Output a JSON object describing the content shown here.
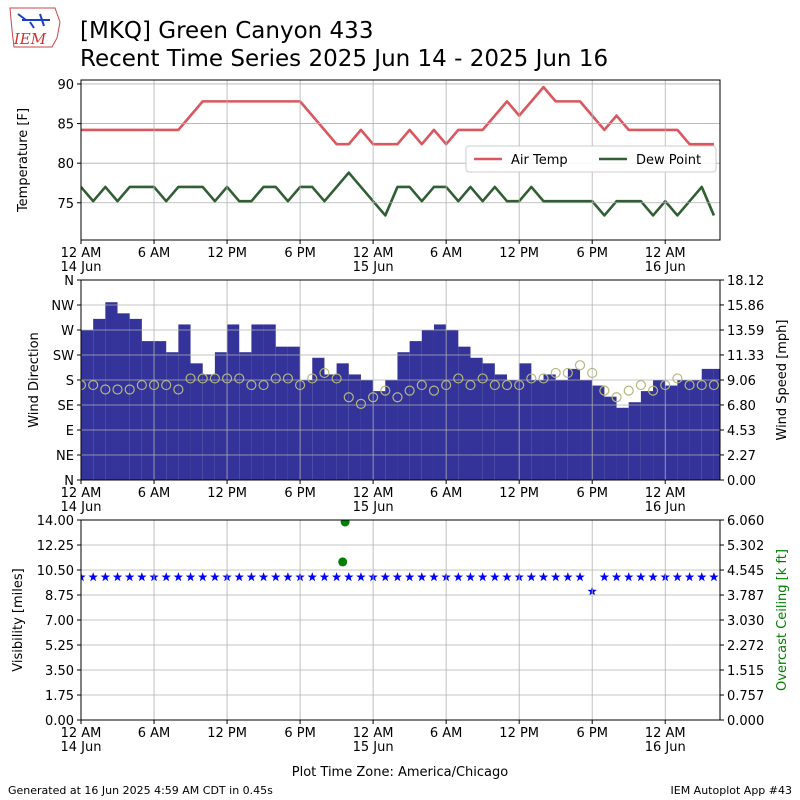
{
  "logo_text": "IEM",
  "title": "[MKQ] Green Canyon 433",
  "subtitle": "Recent Time Series 2025 Jun 14 - 2025 Jun 16",
  "xlabel": "Plot Time Zone: America/Chicago",
  "footer_left": "Generated at 16 Jun 2025 4:59 AM CDT in 0.45s",
  "footer_right": "IEM Autoplot App #43",
  "chart_data": [
    {
      "type": "line",
      "ylabel": "Temperature [F]",
      "grid": true,
      "legend": "center right",
      "legend_columns": 2,
      "xlim": [
        0,
        52.5
      ],
      "xticks": [
        {
          "value": 0,
          "label": "12 AM\n14 Jun"
        },
        {
          "value": 6,
          "label": "6 AM"
        },
        {
          "value": 12,
          "label": "12 PM"
        },
        {
          "value": 18,
          "label": "6 PM"
        },
        {
          "value": 24,
          "label": "12 AM\n15 Jun"
        },
        {
          "value": 30,
          "label": "6 AM"
        },
        {
          "value": 36,
          "label": "12 PM"
        },
        {
          "value": 42,
          "label": "6 PM"
        },
        {
          "value": 48,
          "label": "12 AM\n16 Jun"
        }
      ],
      "ylim": [
        70.3,
        90.5
      ],
      "yticks": [
        75,
        80,
        85,
        90
      ],
      "x": [
        0,
        1,
        2,
        3,
        4,
        5,
        6,
        7,
        8,
        9,
        10,
        11,
        12,
        13,
        14,
        15,
        16,
        17,
        18,
        19,
        20,
        21,
        22,
        23,
        24,
        25,
        26,
        27,
        28,
        29,
        30,
        31,
        32,
        33,
        34,
        35,
        36,
        37,
        38,
        39,
        40,
        41,
        42,
        43,
        44,
        45,
        46,
        47,
        48,
        49,
        50,
        51,
        52
      ],
      "series": [
        {
          "name": "Air Temp",
          "type": "line",
          "color": "#d9575e",
          "values": [
            84.2,
            84.2,
            84.2,
            84.2,
            84.2,
            84.2,
            84.2,
            84.2,
            84.2,
            86,
            87.8,
            87.8,
            87.8,
            87.8,
            87.8,
            87.8,
            87.8,
            87.8,
            87.8,
            86,
            84.2,
            82.4,
            82.4,
            84.2,
            82.4,
            82.4,
            82.4,
            84.2,
            82.4,
            84.2,
            82.4,
            84.2,
            84.2,
            84.2,
            86,
            87.8,
            86,
            87.8,
            89.6,
            87.8,
            87.8,
            87.8,
            86,
            84.2,
            86,
            84.2,
            84.2,
            84.2,
            84.2,
            84.2,
            82.4,
            82.4,
            82.4
          ]
        },
        {
          "name": "Dew Point",
          "type": "line",
          "color": "#2f5f33",
          "values": [
            77,
            75.2,
            77,
            75.2,
            77,
            77,
            77,
            75.2,
            77,
            77,
            77,
            75.2,
            77,
            75.2,
            75.2,
            77,
            77,
            75.2,
            77,
            77,
            75.2,
            77,
            78.8,
            77,
            75.2,
            73.4,
            77,
            77,
            75.2,
            77,
            77,
            75.2,
            77,
            75.2,
            77,
            75.2,
            75.2,
            77,
            75.2,
            75.2,
            75.2,
            75.2,
            75.2,
            73.4,
            75.2,
            75.2,
            75.2,
            73.4,
            75.2,
            73.4,
            75.2,
            77,
            73.4
          ]
        }
      ]
    },
    {
      "type": "bar",
      "ylabel": "Wind Direction",
      "y2label": "Wind Speed [mph]",
      "grid": true,
      "xlim": [
        0,
        52.5
      ],
      "xticks": [
        {
          "value": 0,
          "label": "12 AM\n14 Jun"
        },
        {
          "value": 6,
          "label": "6 AM"
        },
        {
          "value": 12,
          "label": "12 PM"
        },
        {
          "value": 18,
          "label": "6 PM"
        },
        {
          "value": 24,
          "label": "12 AM\n15 Jun"
        },
        {
          "value": 30,
          "label": "6 AM"
        },
        {
          "value": 36,
          "label": "12 PM"
        },
        {
          "value": 42,
          "label": "6 PM"
        },
        {
          "value": 48,
          "label": "12 AM\n16 Jun"
        }
      ],
      "ylim": [
        0,
        360
      ],
      "yticks": [
        {
          "value": 0,
          "label": "N"
        },
        {
          "value": 45,
          "label": "NE"
        },
        {
          "value": 90,
          "label": "E"
        },
        {
          "value": 135,
          "label": "SE"
        },
        {
          "value": 180,
          "label": "S"
        },
        {
          "value": 225,
          "label": "SW"
        },
        {
          "value": 270,
          "label": "W"
        },
        {
          "value": 315,
          "label": "NW"
        },
        {
          "value": 360,
          "label": "N"
        }
      ],
      "y2lim": [
        0,
        18.12
      ],
      "y2ticks": [
        {
          "value": 0,
          "label": "0.00"
        },
        2.27,
        4.53,
        {
          "value": 6.8,
          "label": "6.80"
        },
        9.06,
        11.33,
        13.59,
        15.86,
        18.12
      ],
      "x": [
        0,
        1,
        2,
        3,
        4,
        5,
        6,
        7,
        8,
        9,
        10,
        11,
        12,
        13,
        14,
        15,
        16,
        17,
        18,
        19,
        20,
        21,
        22,
        23,
        24,
        25,
        26,
        27,
        28,
        29,
        30,
        31,
        32,
        33,
        34,
        35,
        36,
        37,
        38,
        39,
        40,
        41,
        42,
        43,
        44,
        45,
        46,
        47,
        48,
        49,
        50,
        51,
        52
      ],
      "series": [
        {
          "type": "bar",
          "color": "#333399",
          "values": [
            270,
            290,
            320,
            300,
            290,
            250,
            250,
            230,
            280,
            210,
            190,
            230,
            280,
            230,
            280,
            280,
            240,
            240,
            180,
            220,
            190,
            210,
            190,
            180,
            160,
            180,
            230,
            250,
            270,
            280,
            270,
            240,
            220,
            210,
            190,
            180,
            210,
            180,
            190,
            180,
            200,
            180,
            170,
            150,
            130,
            140,
            160,
            180,
            170,
            180,
            180,
            200,
            200
          ]
        },
        {
          "type": "circle",
          "axis": "y2",
          "color": "#b4b77d",
          "values": [
            8.6,
            8.6,
            8.2,
            8.2,
            8.2,
            8.6,
            8.6,
            8.6,
            8.2,
            9.2,
            9.2,
            9.2,
            9.2,
            9.2,
            8.6,
            8.6,
            9.2,
            9.2,
            8.6,
            9.2,
            9.7,
            9.2,
            7.5,
            6.9,
            7.5,
            8.1,
            7.5,
            8.1,
            8.6,
            8.1,
            8.6,
            9.2,
            8.6,
            9.2,
            8.6,
            8.6,
            8.6,
            9.2,
            9.2,
            9.7,
            9.7,
            10.4,
            9.7,
            8.1,
            7.5,
            8.1,
            8.6,
            8.1,
            8.6,
            9.2,
            8.6,
            8.6,
            8.6
          ]
        }
      ]
    },
    {
      "type": "scatter",
      "ylabel": "Visibility [miles]",
      "y2label": "Overcast Ceiling [k ft]",
      "y2label_color": "green",
      "grid": true,
      "xlim": [
        0,
        52.5
      ],
      "xticks": [
        {
          "value": 0,
          "label": "12 AM\n14 Jun"
        },
        {
          "value": 6,
          "label": "6 AM"
        },
        {
          "value": 12,
          "label": "12 PM"
        },
        {
          "value": 18,
          "label": "6 PM"
        },
        {
          "value": 24,
          "label": "12 AM\n15 Jun"
        },
        {
          "value": 30,
          "label": "6 AM"
        },
        {
          "value": 36,
          "label": "12 PM"
        },
        {
          "value": 42,
          "label": "6 PM"
        },
        {
          "value": 48,
          "label": "12 AM\n16 Jun"
        }
      ],
      "ylim": [
        0,
        14
      ],
      "yticks": [
        {
          "value": 0,
          "label": "0.00"
        },
        1.75,
        {
          "value": 3.5,
          "label": "3.50"
        },
        5.25,
        {
          "value": 7,
          "label": "7.00"
        },
        8.75,
        {
          "value": 10.5,
          "label": "10.50"
        },
        12.25,
        {
          "value": 14,
          "label": "14.00"
        }
      ],
      "y2lim": [
        0,
        6.06
      ],
      "y2ticks": [
        {
          "value": 0,
          "label": "0.000"
        },
        0.757,
        1.515,
        2.272,
        {
          "value": 3.03,
          "label": "3.030"
        },
        3.787,
        4.545,
        5.302,
        {
          "value": 6.06,
          "label": "6.060"
        }
      ],
      "x": [
        0,
        1,
        2,
        3,
        4,
        5,
        6,
        7,
        8,
        9,
        10,
        11,
        12,
        13,
        14,
        15,
        16,
        17,
        18,
        19,
        20,
        21,
        22,
        23,
        24,
        25,
        26,
        27,
        28,
        29,
        30,
        31,
        32,
        33,
        34,
        35,
        36,
        37,
        38,
        39,
        40,
        41,
        42,
        43,
        44,
        45,
        46,
        47,
        48,
        49,
        50,
        51,
        52
      ],
      "series": [
        {
          "type": "star",
          "color": "blue",
          "values": [
            10,
            10,
            10,
            10,
            10,
            10,
            10,
            10,
            10,
            10,
            10,
            10,
            10,
            10,
            10,
            10,
            10,
            10,
            10,
            10,
            10,
            10,
            10,
            10,
            10,
            10,
            10,
            10,
            10,
            10,
            10,
            10,
            10,
            10,
            10,
            10,
            10,
            10,
            10,
            10,
            10,
            10,
            9,
            10,
            10,
            10,
            10,
            10,
            10,
            10,
            10,
            10,
            10
          ]
        },
        {
          "type": "dot",
          "axis": "y2",
          "color": "green",
          "x": [
            21.7,
            21.5
          ],
          "values": [
            6.0,
            4.79
          ]
        }
      ]
    }
  ]
}
